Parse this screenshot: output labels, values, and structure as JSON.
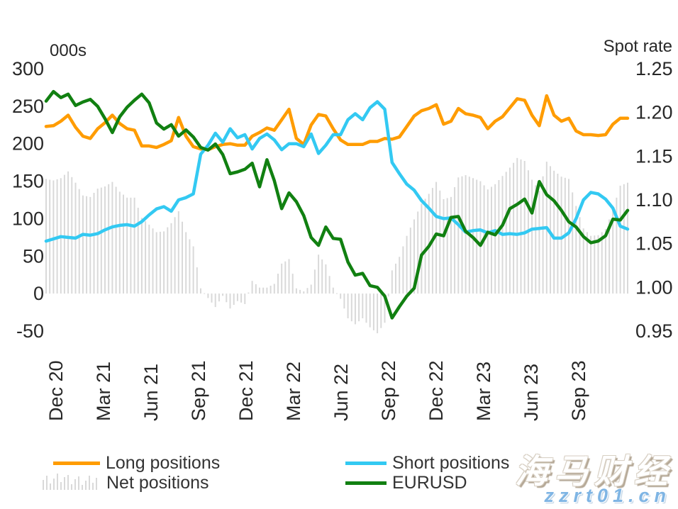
{
  "chart_data": {
    "type": "combo-line-bar",
    "left_axis": {
      "title": "000s",
      "ticks": [
        300,
        250,
        200,
        150,
        100,
        50,
        0,
        -50
      ],
      "tick_labels": [
        "300",
        "250",
        "200",
        "150",
        "100",
        "50",
        "0",
        "-50"
      ],
      "ylim": [
        -50,
        300
      ]
    },
    "right_axis": {
      "title": "Spot rate",
      "ticks": [
        1.25,
        1.2,
        1.15,
        1.1,
        1.05,
        1.0,
        0.95
      ],
      "tick_labels": [
        "1.25",
        "1.20",
        "1.15",
        "1.10",
        "1.05",
        "1.00",
        "0.95"
      ],
      "ylim": [
        0.95,
        1.25
      ]
    },
    "x_axis": {
      "labels": [
        "Dec 20",
        "Mar 21",
        "Jun 21",
        "Sep 21",
        "Dec 21",
        "Mar 22",
        "Jun 22",
        "Sep 22",
        "Dec 22",
        "Mar 23",
        "Jun 23",
        "Sep 23"
      ]
    },
    "grid": false,
    "legend_position": "bottom",
    "series": {
      "long_positions": {
        "label": "Long positions",
        "axis": "left",
        "color": "#FF9C00",
        "type": "line",
        "values": [
          223,
          224,
          230,
          238,
          222,
          210,
          207,
          220,
          228,
          238,
          227,
          220,
          218,
          197,
          197,
          195,
          199,
          204,
          235,
          210,
          196,
          193,
          192,
          196,
          199,
          200,
          198,
          198,
          210,
          215,
          221,
          218,
          232,
          246,
          207,
          199,
          225,
          239,
          237,
          220,
          205,
          199,
          199,
          199,
          203,
          203,
          207,
          206,
          209,
          223,
          237,
          244,
          247,
          252,
          226,
          230,
          247,
          240,
          238,
          235,
          220,
          230,
          236,
          248,
          260,
          258,
          238,
          224,
          264,
          238,
          230,
          234,
          217,
          212,
          212,
          211,
          212,
          226,
          234,
          234
        ]
      },
      "short_positions": {
        "label": "Short positions",
        "axis": "left",
        "color": "#33C9F2",
        "type": "line",
        "values": [
          70,
          73,
          76,
          75,
          74,
          79,
          78,
          80,
          85,
          89,
          91,
          92,
          90,
          96,
          105,
          113,
          116,
          110,
          125,
          128,
          133,
          186,
          198,
          214,
          202,
          220,
          208,
          212,
          193,
          207,
          213,
          205,
          192,
          200,
          200,
          196,
          213,
          187,
          198,
          212,
          212,
          232,
          240,
          232,
          248,
          256,
          246,
          175,
          160,
          146,
          138,
          124,
          114,
          103,
          100,
          101,
          92,
          82,
          84,
          85,
          81,
          84,
          79,
          80,
          79,
          81,
          86,
          87,
          88,
          74,
          74,
          81,
          100,
          125,
          135,
          133,
          126,
          114,
          90,
          86
        ]
      },
      "net_positions": {
        "label": "Net positions",
        "axis": "left",
        "color": "#D9D9D9",
        "type": "bar",
        "derivation": "long_positions minus short_positions"
      },
      "eurusd": {
        "label": "EURUSD",
        "axis": "right",
        "color": "#118011",
        "type": "line",
        "values": [
          1.213,
          1.224,
          1.217,
          1.221,
          1.208,
          1.212,
          1.215,
          1.207,
          1.193,
          1.177,
          1.195,
          1.206,
          1.214,
          1.221,
          1.211,
          1.188,
          1.181,
          1.186,
          1.173,
          1.18,
          1.172,
          1.16,
          1.157,
          1.164,
          1.152,
          1.13,
          1.132,
          1.135,
          1.142,
          1.115,
          1.146,
          1.122,
          1.09,
          1.108,
          1.098,
          1.082,
          1.057,
          1.048,
          1.069,
          1.056,
          1.055,
          1.029,
          1.014,
          1.016,
          1.002,
          1.0,
          0.99,
          0.965,
          0.978,
          0.99,
          0.999,
          1.037,
          1.047,
          1.061,
          1.059,
          1.08,
          1.081,
          1.064,
          1.057,
          1.048,
          1.063,
          1.06,
          1.071,
          1.09,
          1.095,
          1.101,
          1.085,
          1.121,
          1.106,
          1.099,
          1.088,
          1.075,
          1.069,
          1.058,
          1.051,
          1.053,
          1.059,
          1.078,
          1.077,
          1.088
        ]
      }
    }
  },
  "legend": {
    "items": [
      {
        "id": "long",
        "label": "Long positions",
        "color": "#FF9C00",
        "swatch": "line"
      },
      {
        "id": "net",
        "label": "Net positions",
        "color": "#D9D9D9",
        "swatch": "bars"
      },
      {
        "id": "short",
        "label": "Short positions",
        "color": "#33C9F2",
        "swatch": "line"
      },
      {
        "id": "eurusd",
        "label": "EURUSD",
        "color": "#118011",
        "swatch": "line"
      }
    ]
  },
  "watermark": {
    "line1": "海马财经",
    "line2": "zzrt01.cn"
  }
}
